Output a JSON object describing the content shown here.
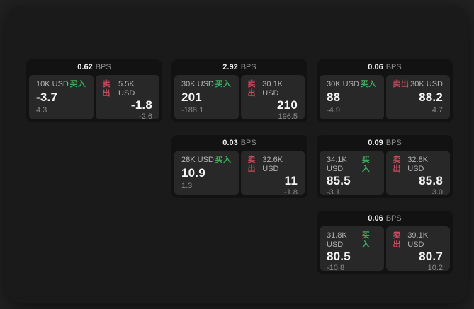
{
  "labels": {
    "bps_unit": "BPS",
    "buy": "买入",
    "sell": "卖出"
  },
  "colors": {
    "page_bg": "#212121",
    "panel_bg": "#1a1a1a",
    "card_bg": "#121212",
    "tile_bg": "#282828",
    "buy_green": "#3cab5d",
    "sell_red": "#c94b5d",
    "value_white": "#f5f5f5",
    "label_grey": "#b3b3b3",
    "sub_grey": "#8a8a8a"
  },
  "cards": [
    {
      "row": 1,
      "col": 1,
      "bps": "0.62",
      "buy": {
        "size": "10K USD",
        "value": "-3.7",
        "sub": "4.3"
      },
      "sell": {
        "size": "5.5K USD",
        "value": "-1.8",
        "sub": "-2.6"
      }
    },
    {
      "row": 1,
      "col": 2,
      "bps": "2.92",
      "buy": {
        "size": "30K USD",
        "value": "201",
        "sub": "-188.1"
      },
      "sell": {
        "size": "30.1K USD",
        "value": "210",
        "sub": "196.5"
      }
    },
    {
      "row": 1,
      "col": 3,
      "bps": "0.06",
      "buy": {
        "size": "30K USD",
        "value": "88",
        "sub": "-4.9"
      },
      "sell": {
        "size": "30K USD",
        "value": "88.2",
        "sub": "4.7"
      }
    },
    {
      "row": 2,
      "col": 2,
      "bps": "0.03",
      "buy": {
        "size": "28K USD",
        "value": "10.9",
        "sub": "1.3"
      },
      "sell": {
        "size": "32.6K USD",
        "value": "11",
        "sub": "-1.8"
      }
    },
    {
      "row": 2,
      "col": 3,
      "bps": "0.09",
      "buy": {
        "size": "34.1K USD",
        "value": "85.5",
        "sub": "-3.1"
      },
      "sell": {
        "size": "32.8K USD",
        "value": "85.8",
        "sub": "3.0"
      }
    },
    {
      "row": 3,
      "col": 3,
      "bps": "0.06",
      "buy": {
        "size": "31.8K USD",
        "value": "80.5",
        "sub": "-10.8"
      },
      "sell": {
        "size": "39.1K USD",
        "value": "80.7",
        "sub": "10.2"
      }
    }
  ]
}
